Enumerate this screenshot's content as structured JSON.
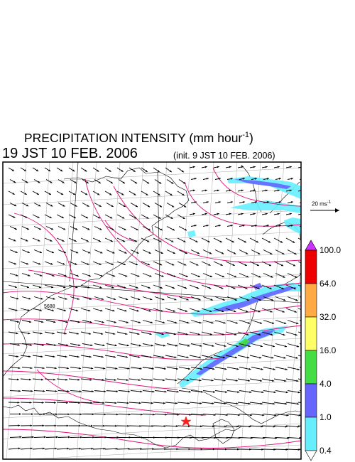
{
  "header": {
    "title_main": "PRECIPITATION INTENSITY (mm hour",
    "title_exp": "-1",
    "title_close": ")",
    "valid_time": "19 JST 10 FEB. 2006",
    "init_time": "(init. 9 JST 10 FEB. 2006)"
  },
  "map": {
    "contour_label": "5688",
    "wind_reference": {
      "label": "20 ms",
      "exponent": "-1"
    },
    "marker": {
      "symbol": "star",
      "color": "#ff2020"
    }
  },
  "colorbar": {
    "unit": "mm hour-1",
    "levels": [
      "100.0",
      "64.0",
      "32.0",
      "16.0",
      "4.0",
      "1.0",
      "0.4"
    ],
    "colors": {
      "above_max": "#cc33ff",
      "64-100": "#ee0000",
      "32-64": "#ffaa44",
      "16-32": "#ffff66",
      "4-16": "#44dd44",
      "1-4": "#6666ff",
      "0.4-1": "#66eeff",
      "below_min": "#ffffff"
    }
  },
  "colors": {
    "contour": "#dd1177",
    "grid": "#aaaaaa",
    "vectors": "#000000"
  }
}
